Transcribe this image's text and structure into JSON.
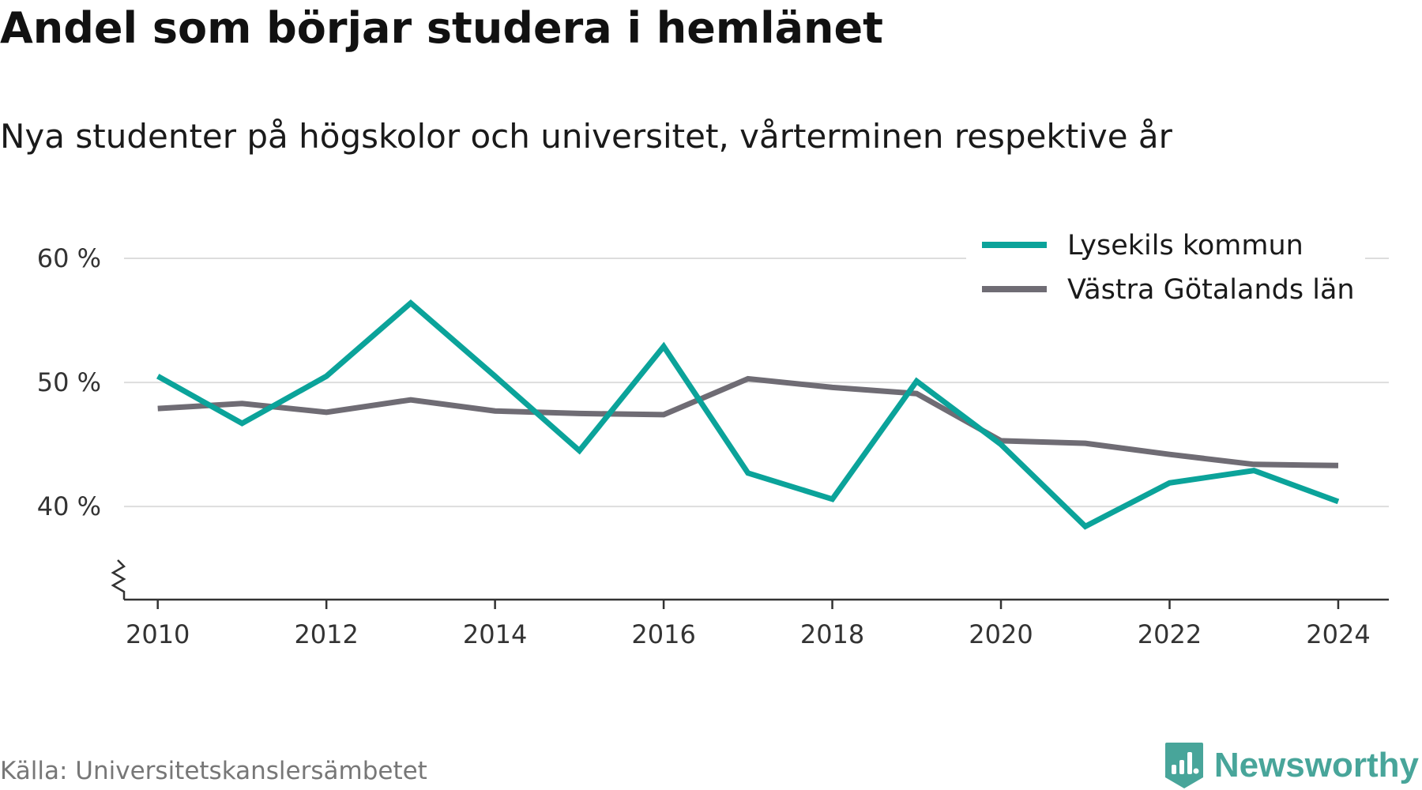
{
  "colors": {
    "lysekil": "#0ba39a",
    "vastra_gotaland": "#6f6c74",
    "grid": "#dddddd",
    "axis": "#333333",
    "brand": "#48a59a"
  },
  "source": "Källa: Universitetskanslersämbetet",
  "brand": {
    "name": "Newsworthy",
    "icon": "newsworthy-logo-icon"
  },
  "chart_data": {
    "type": "line",
    "title": "Andel som börjar studera i hemlänet",
    "subtitle": "Nya studenter på högskolor och universitet, vårterminen respektive år",
    "xlabel": "",
    "ylabel": "",
    "x": [
      2010,
      2011,
      2012,
      2013,
      2014,
      2015,
      2016,
      2017,
      2018,
      2019,
      2020,
      2021,
      2022,
      2023,
      2024
    ],
    "xlim": [
      2009.6,
      2024.6
    ],
    "ylim": [
      32.5,
      60
    ],
    "y_axis_break": true,
    "grid": true,
    "legend_position": "top-right",
    "x_ticks": [
      {
        "value": 2010,
        "label": "2010"
      },
      {
        "value": 2012,
        "label": "2012"
      },
      {
        "value": 2014,
        "label": "2014"
      },
      {
        "value": 2016,
        "label": "2016"
      },
      {
        "value": 2018,
        "label": "2018"
      },
      {
        "value": 2020,
        "label": "2020"
      },
      {
        "value": 2022,
        "label": "2022"
      },
      {
        "value": 2024,
        "label": "2024"
      }
    ],
    "y_ticks": [
      {
        "value": 40,
        "label": "40 %"
      },
      {
        "value": 50,
        "label": "50 %"
      },
      {
        "value": 60,
        "label": "60 %"
      }
    ],
    "series": [
      {
        "name": "Lysekils kommun",
        "color": "#0ba39a",
        "values": [
          50.5,
          46.7,
          50.5,
          56.4,
          50.5,
          44.5,
          52.9,
          42.7,
          40.6,
          50.1,
          45.0,
          38.4,
          41.9,
          42.9,
          40.4
        ]
      },
      {
        "name": "Västra Götalands län",
        "color": "#6f6c74",
        "values": [
          47.9,
          48.3,
          47.6,
          48.6,
          47.7,
          47.5,
          47.4,
          50.3,
          49.6,
          49.1,
          45.3,
          45.1,
          44.2,
          43.4,
          43.3
        ]
      }
    ]
  }
}
